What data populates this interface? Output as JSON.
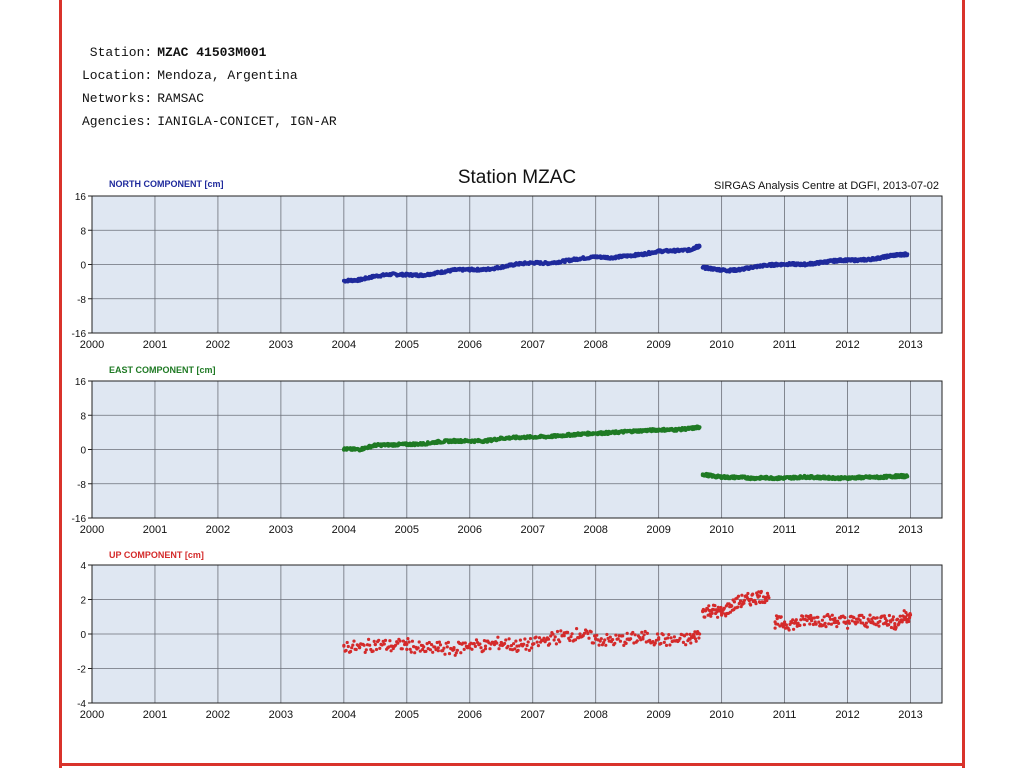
{
  "station_info": {
    "rows": [
      {
        "key": "Station:",
        "value": "MZAC 41503M001"
      },
      {
        "key": "Location:",
        "value": "Mendoza, Argentina"
      },
      {
        "key": "Networks:",
        "value": "RAMSAC"
      },
      {
        "key": "Agencies:",
        "value": "IANIGLA-CONICET, IGN-AR"
      }
    ]
  },
  "colors": {
    "frame": "#d9332b",
    "plot_background": "#dfe7f2",
    "north": "#1f2a9c",
    "east": "#1f7a24",
    "up": "#d42a2a"
  },
  "chart_data": {
    "type": "scatter",
    "title": "Station MZAC",
    "subtitle": "SIRGAS Analysis Centre at DGFI, 2013-07-02",
    "x_ticks": [
      "2000",
      "2001",
      "2002",
      "2003",
      "2004",
      "2005",
      "2006",
      "2007",
      "2008",
      "2009",
      "2010",
      "2011",
      "2012",
      "2013"
    ],
    "xlim": [
      2000,
      2013.5
    ],
    "grid": true,
    "panels": [
      {
        "name": "NORTH COMPONENT [cm]",
        "ylim": [
          -16,
          16
        ],
        "y_ticks": [
          16,
          8,
          0,
          -8,
          -16
        ],
        "color": "#1f2a9c",
        "points": [
          [
            2004.0,
            -3.8
          ],
          [
            2004.25,
            -3.6
          ],
          [
            2004.5,
            -2.7
          ],
          [
            2004.75,
            -2.3
          ],
          [
            2005.0,
            -2.4
          ],
          [
            2005.25,
            -2.5
          ],
          [
            2005.5,
            -1.9
          ],
          [
            2005.75,
            -1.3
          ],
          [
            2006.0,
            -1.2
          ],
          [
            2006.25,
            -1.2
          ],
          [
            2006.5,
            -0.6
          ],
          [
            2006.75,
            0.1
          ],
          [
            2007.0,
            0.4
          ],
          [
            2007.25,
            0.3
          ],
          [
            2007.5,
            0.8
          ],
          [
            2007.75,
            1.4
          ],
          [
            2008.0,
            1.8
          ],
          [
            2008.25,
            1.6
          ],
          [
            2008.5,
            2.0
          ],
          [
            2008.75,
            2.4
          ],
          [
            2009.0,
            3.1
          ],
          [
            2009.25,
            3.2
          ],
          [
            2009.5,
            3.4
          ],
          [
            2009.6,
            4.1
          ],
          [
            2009.65,
            4.2
          ],
          [
            2009.7,
            -0.7
          ],
          [
            2009.9,
            -1.1
          ],
          [
            2010.1,
            -1.4
          ],
          [
            2010.3,
            -1.2
          ],
          [
            2010.5,
            -0.6
          ],
          [
            2010.7,
            -0.2
          ],
          [
            2010.9,
            0.0
          ],
          [
            2011.1,
            0.1
          ],
          [
            2011.3,
            0.0
          ],
          [
            2011.5,
            0.3
          ],
          [
            2011.7,
            0.7
          ],
          [
            2011.9,
            1.0
          ],
          [
            2012.1,
            1.0
          ],
          [
            2012.3,
            1.1
          ],
          [
            2012.5,
            1.5
          ],
          [
            2012.7,
            2.1
          ],
          [
            2012.85,
            2.3
          ],
          [
            2012.95,
            2.4
          ]
        ]
      },
      {
        "name": "EAST COMPONENT [cm]",
        "ylim": [
          -16,
          16
        ],
        "y_ticks": [
          16,
          8,
          0,
          -8,
          -16
        ],
        "color": "#1f7a24",
        "points": [
          [
            2004.0,
            0.1
          ],
          [
            2004.25,
            0.0
          ],
          [
            2004.5,
            1.0
          ],
          [
            2004.75,
            1.1
          ],
          [
            2005.0,
            1.2
          ],
          [
            2005.25,
            1.3
          ],
          [
            2005.5,
            1.8
          ],
          [
            2005.75,
            2.0
          ],
          [
            2006.0,
            2.0
          ],
          [
            2006.25,
            2.0
          ],
          [
            2006.5,
            2.6
          ],
          [
            2006.75,
            2.8
          ],
          [
            2007.0,
            2.9
          ],
          [
            2007.25,
            3.0
          ],
          [
            2007.5,
            3.3
          ],
          [
            2007.75,
            3.6
          ],
          [
            2008.0,
            3.8
          ],
          [
            2008.25,
            3.9
          ],
          [
            2008.5,
            4.2
          ],
          [
            2008.75,
            4.4
          ],
          [
            2009.0,
            4.6
          ],
          [
            2009.25,
            4.6
          ],
          [
            2009.5,
            4.9
          ],
          [
            2009.65,
            5.2
          ],
          [
            2009.7,
            -5.8
          ],
          [
            2009.9,
            -6.3
          ],
          [
            2010.1,
            -6.5
          ],
          [
            2010.3,
            -6.5
          ],
          [
            2010.5,
            -6.7
          ],
          [
            2010.7,
            -6.6
          ],
          [
            2010.9,
            -6.7
          ],
          [
            2011.1,
            -6.6
          ],
          [
            2011.3,
            -6.4
          ],
          [
            2011.5,
            -6.5
          ],
          [
            2011.7,
            -6.6
          ],
          [
            2011.9,
            -6.7
          ],
          [
            2012.1,
            -6.6
          ],
          [
            2012.3,
            -6.5
          ],
          [
            2012.5,
            -6.5
          ],
          [
            2012.7,
            -6.3
          ],
          [
            2012.85,
            -6.2
          ],
          [
            2012.95,
            -6.3
          ]
        ]
      },
      {
        "name": "UP COMPONENT [cm]",
        "ylim": [
          -4,
          4
        ],
        "y_ticks": [
          4,
          2,
          0,
          -2,
          -4
        ],
        "color": "#d42a2a",
        "points": [
          [
            2004.0,
            -0.7
          ],
          [
            2004.25,
            -0.8
          ],
          [
            2004.5,
            -0.6
          ],
          [
            2004.75,
            -0.7
          ],
          [
            2005.0,
            -0.6
          ],
          [
            2005.25,
            -0.9
          ],
          [
            2005.5,
            -0.8
          ],
          [
            2005.75,
            -0.9
          ],
          [
            2006.0,
            -0.6
          ],
          [
            2006.25,
            -0.7
          ],
          [
            2006.5,
            -0.5
          ],
          [
            2006.75,
            -0.7
          ],
          [
            2007.0,
            -0.6
          ],
          [
            2007.25,
            -0.3
          ],
          [
            2007.5,
            -0.1
          ],
          [
            2007.75,
            0.0
          ],
          [
            2008.0,
            -0.3
          ],
          [
            2008.25,
            -0.4
          ],
          [
            2008.5,
            -0.3
          ],
          [
            2008.75,
            -0.2
          ],
          [
            2009.0,
            -0.3
          ],
          [
            2009.25,
            -0.4
          ],
          [
            2009.5,
            -0.3
          ],
          [
            2009.65,
            0.0
          ],
          [
            2009.7,
            1.3
          ],
          [
            2009.85,
            1.4
          ],
          [
            2010.0,
            1.2
          ],
          [
            2010.15,
            1.6
          ],
          [
            2010.3,
            1.9
          ],
          [
            2010.45,
            2.0
          ],
          [
            2010.6,
            2.2
          ],
          [
            2010.75,
            2.1
          ],
          [
            2010.85,
            0.7
          ],
          [
            2011.0,
            0.6
          ],
          [
            2011.2,
            0.6
          ],
          [
            2011.4,
            0.9
          ],
          [
            2011.6,
            0.8
          ],
          [
            2011.8,
            0.8
          ],
          [
            2012.0,
            0.7
          ],
          [
            2012.2,
            0.8
          ],
          [
            2012.4,
            0.7
          ],
          [
            2012.6,
            0.9
          ],
          [
            2012.75,
            0.6
          ],
          [
            2012.9,
            1.0
          ],
          [
            2013.0,
            1.1
          ]
        ]
      }
    ]
  }
}
